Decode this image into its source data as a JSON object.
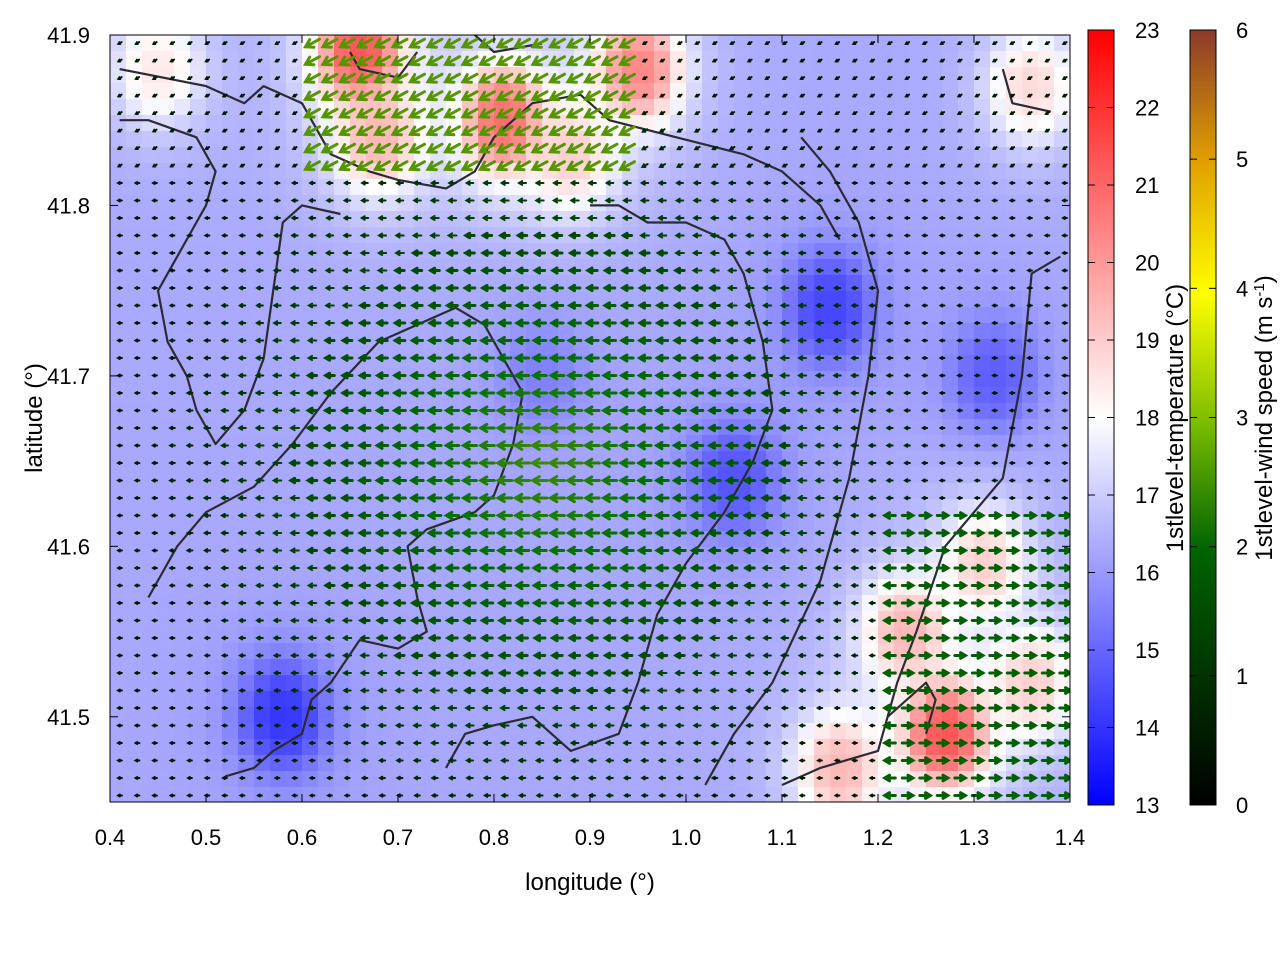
{
  "chart_data": {
    "type": "heatmap",
    "title": "",
    "xlabel": "longitude (°)",
    "ylabel": "latitude (°)",
    "xlim": [
      0.4,
      1.4
    ],
    "ylim": [
      41.45,
      41.9
    ],
    "x_ticks": [
      "0.4",
      "0.5",
      "0.6",
      "0.7",
      "0.8",
      "0.9",
      "1.0",
      "1.1",
      "1.2",
      "1.3",
      "1.4"
    ],
    "y_ticks": [
      "41.5",
      "41.6",
      "41.7",
      "41.8",
      "41.9"
    ],
    "grid": false,
    "temperature_colorbar": {
      "label": "1stlevel-temperature (°C)",
      "range": [
        13,
        23
      ],
      "ticks": [
        "13",
        "14",
        "15",
        "16",
        "17",
        "18",
        "19",
        "20",
        "21",
        "22",
        "23"
      ],
      "colors": [
        "#0000ff",
        "#ffffff",
        "#ff0000"
      ]
    },
    "wind_colorbar": {
      "label_main": "1stlevel-wind speed (m s",
      "label_sup": "-1",
      "label_end": ")",
      "range": [
        0,
        6
      ],
      "ticks": [
        "0",
        "1",
        "2",
        "3",
        "4",
        "5",
        "6"
      ],
      "colors": [
        "#000000",
        "#006400",
        "#80c000",
        "#ffff00",
        "#e0a000",
        "#8b3a2a"
      ]
    },
    "temperature_field_description_points": [
      {
        "lon": 0.66,
        "lat": 41.89,
        "t": 21.5
      },
      {
        "lon": 0.95,
        "lat": 41.88,
        "t": 20.5
      },
      {
        "lon": 0.81,
        "lat": 41.85,
        "t": 21.0
      },
      {
        "lon": 0.88,
        "lat": 41.83,
        "t": 19.0
      },
      {
        "lon": 0.68,
        "lat": 41.84,
        "t": 19.5
      },
      {
        "lon": 0.45,
        "lat": 41.88,
        "t": 18.5
      },
      {
        "lon": 1.36,
        "lat": 41.87,
        "t": 18.8
      },
      {
        "lon": 1.27,
        "lat": 41.49,
        "t": 21.5
      },
      {
        "lon": 1.23,
        "lat": 41.55,
        "t": 19.5
      },
      {
        "lon": 1.31,
        "lat": 41.59,
        "t": 19.0
      },
      {
        "lon": 1.16,
        "lat": 41.47,
        "t": 19.5
      },
      {
        "lon": 1.36,
        "lat": 41.52,
        "t": 19.0
      },
      {
        "lon": 0.58,
        "lat": 41.5,
        "t": 14.0
      },
      {
        "lon": 1.15,
        "lat": 41.74,
        "t": 14.3
      },
      {
        "lon": 1.05,
        "lat": 41.64,
        "t": 14.6
      },
      {
        "lon": 1.32,
        "lat": 41.7,
        "t": 14.8
      },
      {
        "lon": 0.85,
        "lat": 41.7,
        "t": 15.5
      }
    ]
  }
}
